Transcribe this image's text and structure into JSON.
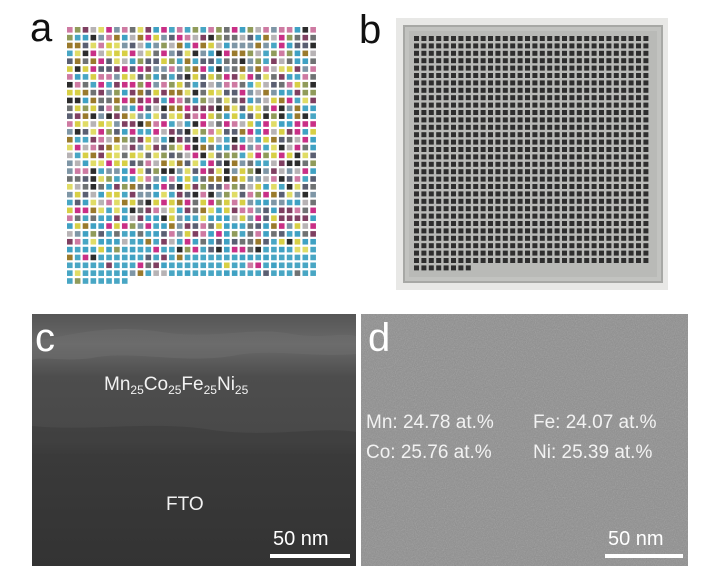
{
  "panels": {
    "a": {
      "letter": "a"
    },
    "b": {
      "letter": "b"
    },
    "c": {
      "letter": "c",
      "film_label": {
        "el1": "Mn",
        "n1": "25",
        "el2": "Co",
        "n2": "25",
        "el3": "Fe",
        "n3": "25",
        "el4": "Ni",
        "n4": "25"
      },
      "substrate_label": "FTO",
      "scale_label": "50 nm"
    },
    "d": {
      "letter": "d",
      "composition": {
        "mn": "Mn: 24.78 at.%",
        "fe": "Fe: 24.07 at.%",
        "co": "Co: 25.76 at.%",
        "ni": "Ni: 25.39 at.%"
      },
      "scale_label": "50 nm"
    }
  },
  "colors": {
    "palette": [
      "#b7b3b5",
      "#6f7273",
      "#48a6c4",
      "#7f3f61",
      "#9a7a2c",
      "#c92f86",
      "#d7cf45",
      "#909b5a",
      "#2c2c2c",
      "#7e96a6",
      "#ce7aa2",
      "#5a5f72",
      "#e0dc66",
      "#3fa1c3"
    ],
    "plate_bg": "#e8e8e6",
    "plate_frame": "#b9bab7",
    "plate_hole": "#2e2e2e",
    "sem_film": "#4a4a4a",
    "sem_substrate": "#333333"
  }
}
